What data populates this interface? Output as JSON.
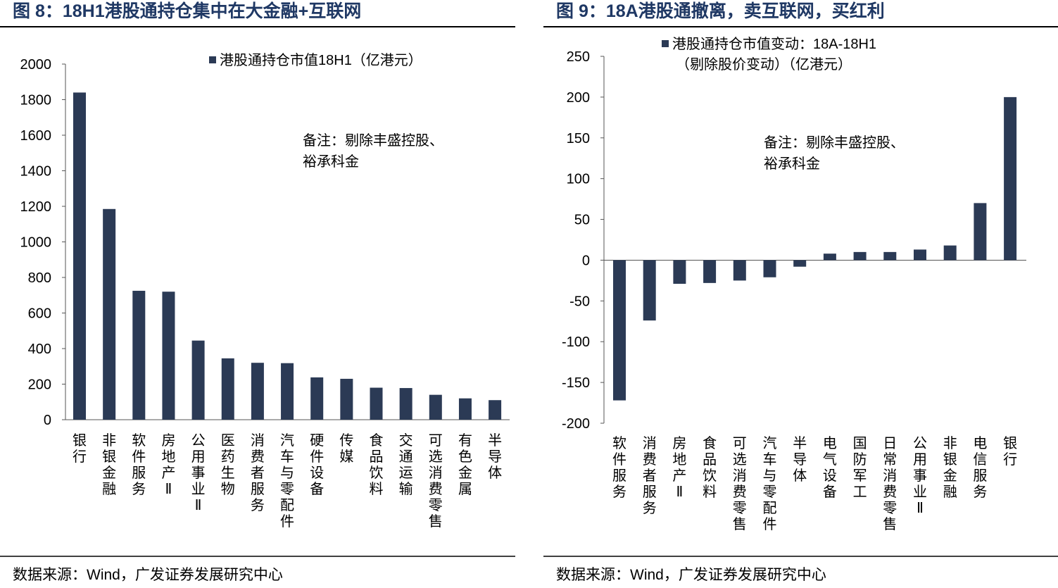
{
  "chart_data": [
    {
      "type": "bar",
      "title": "图 8：18H1港股通持仓集中在大金融+互联网",
      "legend": "港股通持仓市值18H1（亿港元）",
      "legend_placement": "top-right",
      "note_lines": [
        "备注：剔除丰盛控股、",
        "裕承科金"
      ],
      "categories": [
        "银行",
        "非银金融",
        "软件服务",
        "房地产Ⅱ",
        "公用事业Ⅱ",
        "医药生物",
        "消费者服务",
        "汽车与零配件",
        "硬件设备",
        "传媒",
        "食品饮料",
        "交通运输",
        "可选消费零售",
        "有色金属",
        "半导体"
      ],
      "values": [
        1840,
        1185,
        725,
        720,
        445,
        345,
        320,
        318,
        238,
        230,
        180,
        178,
        140,
        120,
        110
      ],
      "ylim": [
        0,
        2000
      ],
      "yticks": [
        0,
        200,
        400,
        600,
        800,
        1000,
        1200,
        1400,
        1600,
        1800,
        2000
      ],
      "source": "数据来源：Wind，广发证券发展研究中心",
      "color": "#2b3a55"
    },
    {
      "type": "bar",
      "title": "图 9：18A港股通撤离，卖互联网，买红利",
      "legend": "港股通持仓市值变动：18A-18H1",
      "legend_line2": "（剔除股价变动）（亿港元）",
      "legend_placement": "top-center",
      "note_lines": [
        "备注：剔除丰盛控股、",
        "裕承科金"
      ],
      "categories": [
        "软件服务",
        "消费者服务",
        "房地产Ⅱ",
        "食品饮料",
        "可选消费零售",
        "汽车与零配件",
        "半导体",
        "电气设备",
        "国防军工",
        "日常消费零售",
        "公用事业Ⅱ",
        "非银金融",
        "电信服务",
        "银行"
      ],
      "values": [
        -172,
        -74,
        -29,
        -28,
        -25,
        -21,
        -8,
        8,
        10,
        10,
        13,
        18,
        70,
        200
      ],
      "ylim": [
        -200,
        250
      ],
      "yticks": [
        -200,
        -150,
        -100,
        -50,
        0,
        50,
        100,
        150,
        200,
        250
      ],
      "source": "数据来源：Wind，广发证券发展研究中心",
      "color": "#2b3a55"
    }
  ]
}
